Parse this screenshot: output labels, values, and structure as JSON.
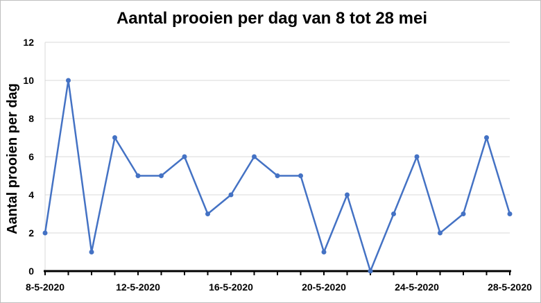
{
  "chart_data": {
    "type": "line",
    "title": "Aantal prooien per dag van 8 tot 28 mei",
    "xlabel": "",
    "ylabel": "Aantal prooien per dag",
    "ylim": [
      0,
      12
    ],
    "yticks": [
      0,
      2,
      4,
      6,
      8,
      10,
      12
    ],
    "x": [
      "8-5-2020",
      "9-5-2020",
      "10-5-2020",
      "11-5-2020",
      "12-5-2020",
      "13-5-2020",
      "14-5-2020",
      "15-5-2020",
      "16-5-2020",
      "17-5-2020",
      "18-5-2020",
      "19-5-2020",
      "20-5-2020",
      "21-5-2020",
      "22-5-2020",
      "23-5-2020",
      "24-5-2020",
      "25-5-2020",
      "26-5-2020",
      "27-5-2020",
      "28-5-2020"
    ],
    "xtick_labels": [
      "8-5-2020",
      "12-5-2020",
      "16-5-2020",
      "20-5-2020",
      "24-5-2020",
      "28-5-2020"
    ],
    "values": [
      2,
      10,
      1,
      7,
      5,
      5,
      6,
      3,
      4,
      6,
      5,
      5,
      1,
      4,
      0,
      3,
      6,
      2,
      3,
      7,
      3
    ],
    "grid": true,
    "line_color": "#4472c4"
  }
}
